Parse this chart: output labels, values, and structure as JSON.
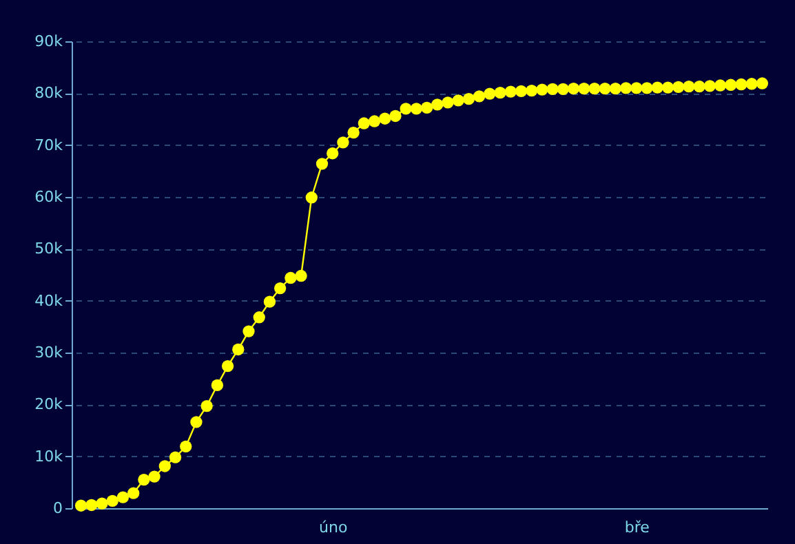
{
  "chart_data": {
    "type": "line",
    "marker": "circle",
    "line_style": "solid",
    "grid": "y",
    "categories": [
      null,
      null,
      null,
      null,
      null,
      null,
      null,
      null,
      null,
      null,
      null,
      null,
      null,
      null,
      null,
      null,
      null,
      null,
      null,
      null,
      null,
      null,
      null,
      null,
      "úno",
      null,
      null,
      null,
      null,
      null,
      null,
      null,
      null,
      null,
      null,
      null,
      null,
      null,
      null,
      null,
      null,
      null,
      null,
      null,
      null,
      null,
      null,
      null,
      null,
      null,
      null,
      null,
      null,
      "bře",
      null,
      null,
      null,
      null,
      null,
      null,
      null,
      null,
      null,
      null,
      null,
      null
    ],
    "series": [
      {
        "color": "#ffff00",
        "values": [
          500,
          600,
          900,
          1400,
          2100,
          2900,
          5500,
          6100,
          8100,
          9800,
          11900,
          16600,
          19700,
          23700,
          27400,
          30600,
          34100,
          36800,
          39800,
          42400,
          44400,
          44800,
          59900,
          66400,
          68400,
          70500,
          72400,
          74200,
          74600,
          75100,
          75600,
          77000,
          77000,
          77200,
          77800,
          78200,
          78600,
          78900,
          79400,
          79900,
          80100,
          80300,
          80400,
          80500,
          80700,
          80800,
          80800,
          80900,
          80900,
          80900,
          80900,
          80900,
          81000,
          81000,
          81000,
          81100,
          81100,
          81200,
          81300,
          81300,
          81400,
          81500,
          81600,
          81700,
          81800,
          81900
        ]
      }
    ],
    "ylim": [
      0,
      90000
    ],
    "yticks": [
      0,
      {
        "value": 10000,
        "label": "10k"
      },
      {
        "value": 20000,
        "label": "20k"
      },
      {
        "value": 30000,
        "label": "30k"
      },
      {
        "value": 40000,
        "label": "40k"
      },
      {
        "value": 50000,
        "label": "50k"
      },
      {
        "value": 60000,
        "label": "60k"
      },
      {
        "value": 70000,
        "label": "70k"
      },
      {
        "value": 80000,
        "label": "80k"
      },
      {
        "value": 90000,
        "label": "90k"
      }
    ]
  }
}
